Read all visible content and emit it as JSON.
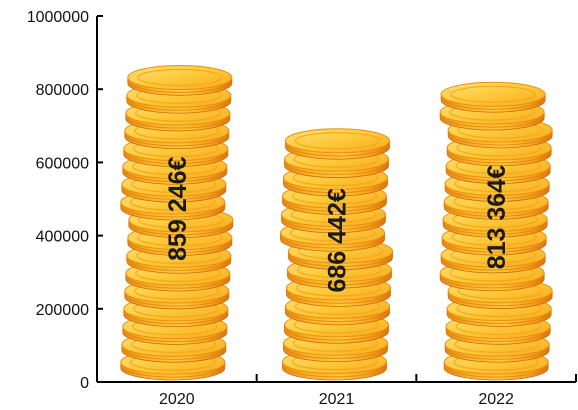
{
  "chart_data": {
    "type": "bar",
    "style": "coin-stacks",
    "categories": [
      "2020",
      "2021",
      "2022"
    ],
    "values": [
      859246,
      686442,
      813364
    ],
    "data_labels": [
      "859 246€",
      "686 442€",
      "813 364€"
    ],
    "ylim": [
      0,
      1000000
    ],
    "yticks": [
      "0",
      "200000",
      "400000",
      "600000",
      "800000",
      "1000000"
    ],
    "ytick_values": [
      0,
      200000,
      400000,
      600000,
      800000,
      1000000
    ],
    "title": "",
    "xlabel": "",
    "ylabel": "",
    "grid": false,
    "legend": "none"
  },
  "colors": {
    "axis": "#000000",
    "coin_face": "#F9B01C",
    "coin_top": "#FDD24A",
    "coin_highlight": "#FFE27A",
    "coin_edge": "#E57E0F",
    "coin_rim_dark": "#C9620A",
    "label": "#1a1a1a"
  }
}
